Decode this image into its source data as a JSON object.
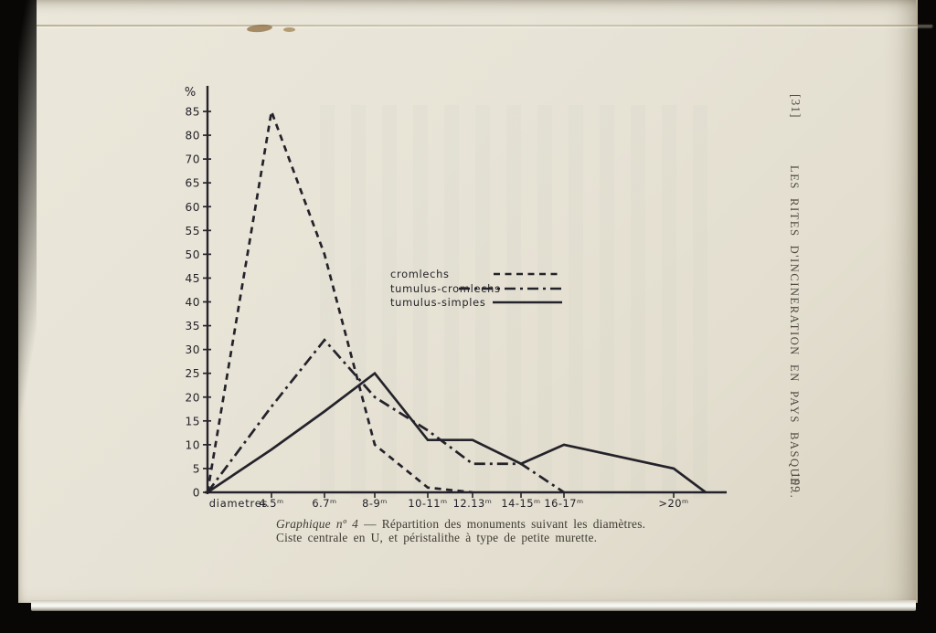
{
  "page": {
    "paper_color": "#e7e3d6",
    "ink_color": "#24222a",
    "print_color": "#403c33"
  },
  "margin": {
    "reference": "[31]",
    "running_title": "LES RITES D'INCINERATION EN PAYS BASQUE...",
    "page_number": "199"
  },
  "caption": {
    "title": "Graphique nº 4",
    "separator": "—",
    "text": "Répartition des monuments suivant les diamètres.",
    "line2": "Ciste centrale en U, et péristalithe à type de petite murette."
  },
  "chart_data": {
    "type": "line",
    "percent_label": "%",
    "x_axis_label": "diametres",
    "ylim": [
      0,
      85
    ],
    "grid": false,
    "y_ticks": [
      0,
      5,
      10,
      15,
      20,
      25,
      30,
      35,
      40,
      45,
      50,
      55,
      60,
      65,
      70,
      80,
      85
    ],
    "y_ticks_display": [
      "85",
      "80",
      "70",
      "65",
      "60",
      "55",
      "50",
      "45",
      "40",
      "35",
      "30",
      "25",
      "20",
      "15",
      "10",
      "5",
      "0"
    ],
    "y_axis_note": "hand-drawn axis omits 75; ticks evenly spaced",
    "categories": [
      "4.5ᵐ",
      "6.7ᵐ",
      "8-9ᵐ",
      "10-11ᵐ",
      "12.13ᵐ",
      "14-15ᵐ",
      "16-17ᵐ",
      ">20ᵐ"
    ],
    "all_series_start_at_zero_at_origin": true,
    "series": [
      {
        "name": "cromlechs",
        "style": "dashed",
        "values": [
          85,
          50,
          10,
          1,
          0,
          null,
          null,
          null
        ]
      },
      {
        "name": "tumulus-cromlechs",
        "style": "dashdot",
        "values": [
          18,
          32,
          20,
          13,
          6,
          6,
          0,
          null
        ]
      },
      {
        "name": "tumulus-simples",
        "style": "solid",
        "values": [
          9,
          17,
          25,
          11,
          11,
          6,
          10,
          5
        ],
        "ends_at_zero_after_last": true
      }
    ],
    "legend_labels": [
      "cromlechs",
      "tumulus-cromlechs",
      "tumulus-simples"
    ],
    "legend_position": "center-right"
  }
}
